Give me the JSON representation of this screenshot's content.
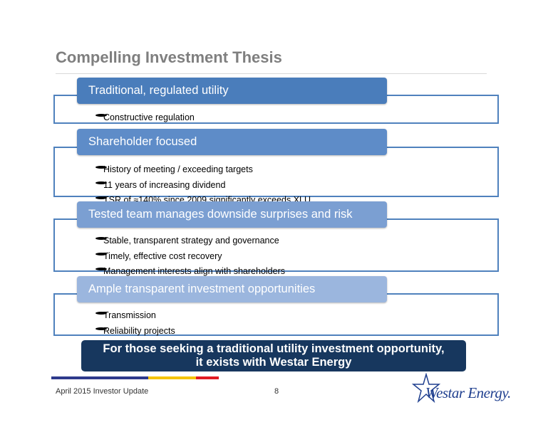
{
  "header": {
    "title": "Compelling Investment Thesis"
  },
  "sections": [
    {
      "heading": "Traditional, regulated utility",
      "bullets": [
        "Constructive regulation"
      ]
    },
    {
      "heading": "Shareholder focused",
      "bullets": [
        "History of meeting / exceeding targets",
        "11 years of increasing dividend",
        "TSR of ≈140% since 2009 significantly exceeds XLU"
      ]
    },
    {
      "heading": "Tested team manages downside surprises and risk",
      "bullets": [
        "Stable, transparent strategy and governance",
        "Timely, effective cost recovery",
        "Management interests align with shareholders"
      ]
    },
    {
      "heading": "Ample transparent investment opportunities",
      "bullets": [
        "Transmission",
        "Reliability projects"
      ]
    }
  ],
  "conclusion": [
    "For those seeking a traditional utility investment opportunity,",
    "it exists with Westar Energy"
  ],
  "footer": {
    "left": "April 2015 Investor Update",
    "page": "8",
    "logo": "Westar Energy."
  }
}
